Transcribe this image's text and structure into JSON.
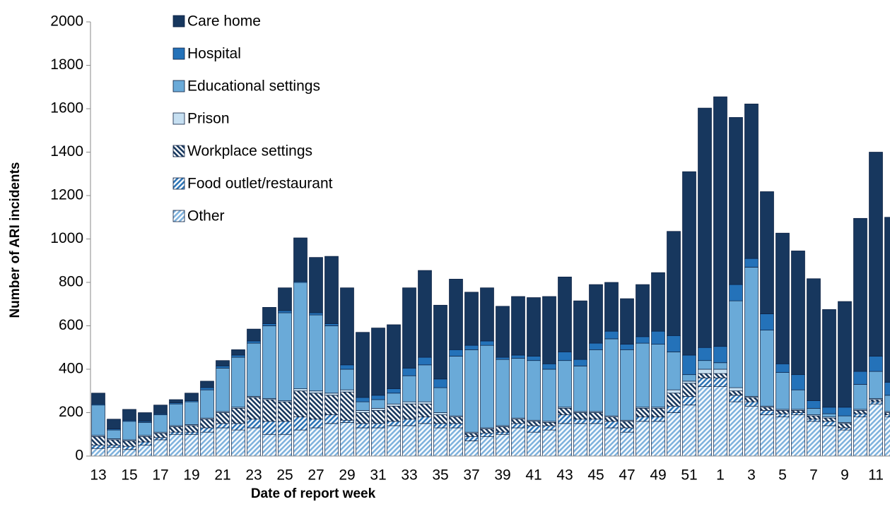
{
  "chart_data": {
    "type": "stacked_bar",
    "x_label": "Date of report week",
    "y_label": "Number of ARI incidents",
    "categories": [
      "13",
      null,
      "15",
      null,
      "17",
      null,
      "19",
      null,
      "21",
      null,
      "23",
      null,
      "25",
      null,
      "27",
      null,
      "29",
      null,
      "31",
      null,
      "33",
      null,
      "35",
      null,
      "37",
      null,
      "39",
      null,
      "41",
      null,
      "43",
      null,
      "45",
      null,
      "47",
      null,
      "49",
      null,
      "51",
      null,
      "1",
      null,
      "3",
      null,
      "5",
      null,
      "7",
      null,
      "9",
      null,
      "11",
      null
    ],
    "ylim": [
      0,
      2000
    ],
    "yticks": [
      0,
      200,
      400,
      600,
      800,
      1000,
      1200,
      1400,
      1600,
      1800,
      2000
    ],
    "grid": false,
    "legend": "upper left",
    "series": [
      {
        "name": "Other",
        "color": "#7fb2dd",
        "pattern": "diagonal",
        "values": [
          35,
          40,
          30,
          50,
          75,
          100,
          100,
          110,
          130,
          120,
          130,
          100,
          100,
          120,
          130,
          150,
          155,
          130,
          130,
          140,
          140,
          150,
          130,
          130,
          70,
          90,
          100,
          130,
          110,
          120,
          150,
          150,
          150,
          130,
          110,
          160,
          160,
          200,
          235,
          320,
          320,
          250,
          230,
          190,
          180,
          190,
          160,
          140,
          120,
          180,
          240,
          180
        ]
      },
      {
        "name": "Food outlet/restaurant",
        "color": "#2e75b6",
        "pattern": "diagonal",
        "values": [
          15,
          10,
          15,
          15,
          10,
          10,
          10,
          20,
          20,
          30,
          40,
          60,
          60,
          60,
          40,
          40,
          10,
          20,
          20,
          20,
          30,
          30,
          20,
          20,
          20,
          15,
          10,
          20,
          30,
          20,
          40,
          20,
          20,
          30,
          20,
          20,
          20,
          30,
          40,
          40,
          40,
          30,
          20,
          20,
          15,
          10,
          10,
          20,
          10,
          15,
          10,
          10
        ]
      },
      {
        "name": "Workplace settings",
        "color": "#17375e",
        "pattern": "backdiagonal",
        "values": [
          40,
          25,
          25,
          25,
          20,
          25,
          30,
          40,
          50,
          70,
          100,
          100,
          90,
          120,
          120,
          90,
          130,
          50,
          60,
          70,
          70,
          60,
          40,
          30,
          15,
          20,
          25,
          20,
          20,
          15,
          30,
          30,
          30,
          20,
          30,
          40,
          40,
          60,
          60,
          20,
          20,
          20,
          20,
          15,
          15,
          10,
          15,
          15,
          20,
          15,
          10,
          10
        ]
      },
      {
        "name": "Prison",
        "color": "#c6dff1",
        "values": [
          5,
          5,
          5,
          5,
          5,
          5,
          5,
          5,
          5,
          5,
          5,
          5,
          5,
          10,
          10,
          10,
          10,
          10,
          10,
          10,
          10,
          10,
          10,
          5,
          5,
          5,
          5,
          5,
          5,
          5,
          5,
          5,
          5,
          5,
          5,
          5,
          5,
          15,
          10,
          20,
          20,
          15,
          5,
          5,
          5,
          5,
          5,
          5,
          5,
          5,
          5,
          5
        ]
      },
      {
        "name": "Educational settings",
        "color": "#6aaad8",
        "values": [
          140,
          40,
          85,
          60,
          80,
          100,
          105,
          130,
          200,
          230,
          245,
          335,
          405,
          490,
          350,
          310,
          95,
          40,
          40,
          50,
          120,
          170,
          115,
          275,
          380,
          380,
          305,
          275,
          275,
          240,
          215,
          210,
          285,
          355,
          325,
          295,
          290,
          175,
          30,
          40,
          30,
          400,
          595,
          350,
          170,
          90,
          30,
          15,
          30,
          115,
          125,
          75
        ]
      },
      {
        "name": "Hospital",
        "color": "#2472b9",
        "values": [
          5,
          5,
          5,
          5,
          5,
          5,
          5,
          10,
          10,
          10,
          10,
          10,
          10,
          5,
          10,
          10,
          20,
          20,
          20,
          20,
          35,
          35,
          40,
          30,
          20,
          20,
          10,
          15,
          20,
          25,
          40,
          30,
          30,
          35,
          25,
          30,
          60,
          75,
          90,
          60,
          75,
          75,
          40,
          75,
          40,
          70,
          35,
          30,
          40,
          60,
          70,
          60
        ]
      },
      {
        "name": "Care home",
        "color": "#17375e",
        "values": [
          50,
          45,
          50,
          40,
          40,
          15,
          35,
          30,
          25,
          25,
          55,
          75,
          105,
          200,
          255,
          310,
          355,
          300,
          310,
          295,
          370,
          400,
          340,
          325,
          245,
          245,
          235,
          270,
          270,
          310,
          345,
          270,
          270,
          225,
          210,
          240,
          270,
          480,
          845,
          1103,
          1150,
          770,
          712,
          563,
          602,
          570,
          562,
          450,
          487,
          705,
          940,
          760
        ]
      }
    ]
  }
}
